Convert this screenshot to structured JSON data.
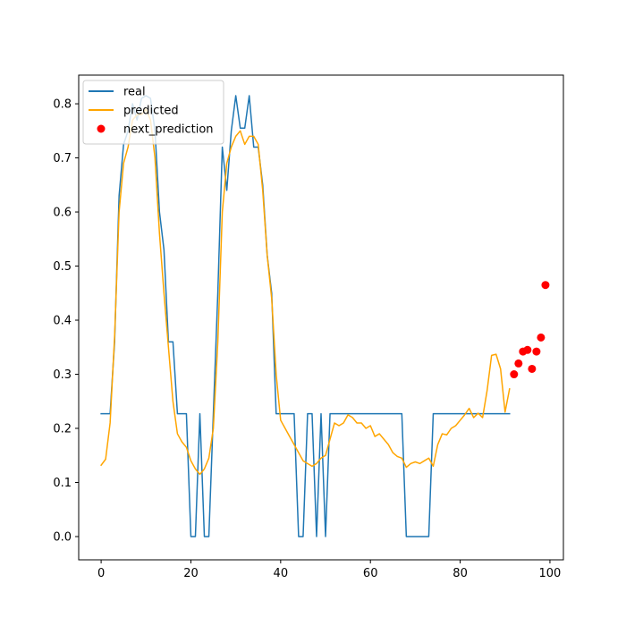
{
  "chart_data": {
    "type": "line",
    "title": "",
    "xlabel": "",
    "ylabel": "",
    "xlim": [
      -5,
      103
    ],
    "ylim": [
      -0.043,
      0.853
    ],
    "xticks": [
      0,
      20,
      40,
      60,
      80,
      100
    ],
    "yticks": [
      0.0,
      0.1,
      0.2,
      0.3,
      0.4,
      0.5,
      0.6,
      0.7,
      0.8
    ],
    "grid": false,
    "legend_position": "top-left",
    "series": [
      {
        "name": "real",
        "kind": "line",
        "color": "#1f77b4",
        "x": [
          0,
          1,
          2,
          3,
          4,
          5,
          6,
          7,
          8,
          9,
          10,
          11,
          12,
          13,
          14,
          15,
          16,
          17,
          18,
          19,
          20,
          21,
          22,
          23,
          24,
          25,
          26,
          27,
          28,
          29,
          30,
          31,
          32,
          33,
          34,
          35,
          36,
          37,
          38,
          39,
          40,
          41,
          42,
          43,
          44,
          45,
          46,
          47,
          48,
          49,
          50,
          51,
          52,
          53,
          54,
          55,
          56,
          57,
          58,
          59,
          60,
          61,
          62,
          63,
          64,
          65,
          66,
          67,
          68,
          69,
          70,
          71,
          72,
          73,
          74,
          75,
          76,
          77,
          78,
          79,
          80,
          81,
          82,
          83,
          84,
          85,
          86,
          87,
          88,
          89,
          90,
          91
        ],
        "y": [
          0.227,
          0.227,
          0.227,
          0.36,
          0.63,
          0.725,
          0.75,
          0.8,
          0.77,
          0.81,
          0.815,
          0.81,
          0.75,
          0.6,
          0.53,
          0.36,
          0.36,
          0.227,
          0.227,
          0.227,
          0.0,
          0.0,
          0.227,
          0.0,
          0.0,
          0.227,
          0.45,
          0.72,
          0.64,
          0.75,
          0.815,
          0.755,
          0.755,
          0.815,
          0.72,
          0.72,
          0.65,
          0.52,
          0.45,
          0.227,
          0.227,
          0.227,
          0.227,
          0.227,
          0.0,
          0.0,
          0.227,
          0.227,
          0.0,
          0.227,
          0.0,
          0.227,
          0.227,
          0.227,
          0.227,
          0.227,
          0.227,
          0.227,
          0.227,
          0.227,
          0.227,
          0.227,
          0.227,
          0.227,
          0.227,
          0.227,
          0.227,
          0.227,
          0.0,
          0.0,
          0.0,
          0.0,
          0.0,
          0.0,
          0.227,
          0.227,
          0.227,
          0.227,
          0.227,
          0.227,
          0.227,
          0.227,
          0.227,
          0.227,
          0.227,
          0.227,
          0.227,
          0.227,
          0.227,
          0.227,
          0.227,
          0.227
        ]
      },
      {
        "name": "predicted",
        "kind": "line",
        "color": "#ffa500",
        "x": [
          0,
          1,
          2,
          3,
          4,
          5,
          6,
          7,
          8,
          9,
          10,
          11,
          12,
          13,
          14,
          15,
          16,
          17,
          18,
          19,
          20,
          21,
          22,
          23,
          24,
          25,
          26,
          27,
          28,
          29,
          30,
          31,
          32,
          33,
          34,
          35,
          36,
          37,
          38,
          39,
          40,
          41,
          42,
          43,
          44,
          45,
          46,
          47,
          48,
          49,
          50,
          51,
          52,
          53,
          54,
          55,
          56,
          57,
          58,
          59,
          60,
          61,
          62,
          63,
          64,
          65,
          66,
          67,
          68,
          69,
          70,
          71,
          72,
          73,
          74,
          75,
          76,
          77,
          78,
          79,
          80,
          81,
          82,
          83,
          84,
          85,
          86,
          87,
          88,
          89,
          90,
          91
        ],
        "y": [
          0.132,
          0.143,
          0.21,
          0.37,
          0.6,
          0.69,
          0.72,
          0.77,
          0.78,
          0.78,
          0.79,
          0.77,
          0.7,
          0.56,
          0.45,
          0.35,
          0.25,
          0.19,
          0.175,
          0.165,
          0.14,
          0.125,
          0.115,
          0.125,
          0.145,
          0.2,
          0.36,
          0.6,
          0.69,
          0.72,
          0.74,
          0.75,
          0.725,
          0.74,
          0.74,
          0.725,
          0.64,
          0.52,
          0.44,
          0.3,
          0.215,
          0.2,
          0.185,
          0.17,
          0.155,
          0.14,
          0.135,
          0.13,
          0.135,
          0.145,
          0.15,
          0.18,
          0.21,
          0.205,
          0.21,
          0.225,
          0.22,
          0.21,
          0.21,
          0.2,
          0.205,
          0.185,
          0.19,
          0.18,
          0.17,
          0.155,
          0.148,
          0.145,
          0.128,
          0.135,
          0.138,
          0.135,
          0.14,
          0.145,
          0.13,
          0.17,
          0.19,
          0.188,
          0.2,
          0.205,
          0.215,
          0.225,
          0.237,
          0.22,
          0.228,
          0.22,
          0.27,
          0.335,
          0.337,
          0.31,
          0.23,
          0.273
        ]
      },
      {
        "name": "next_prediction",
        "kind": "scatter",
        "color": "#ff0000",
        "x": [
          92,
          93,
          94,
          95,
          96,
          97,
          98,
          99
        ],
        "y": [
          0.3,
          0.32,
          0.342,
          0.345,
          0.31,
          0.342,
          0.368,
          0.465
        ]
      }
    ]
  }
}
